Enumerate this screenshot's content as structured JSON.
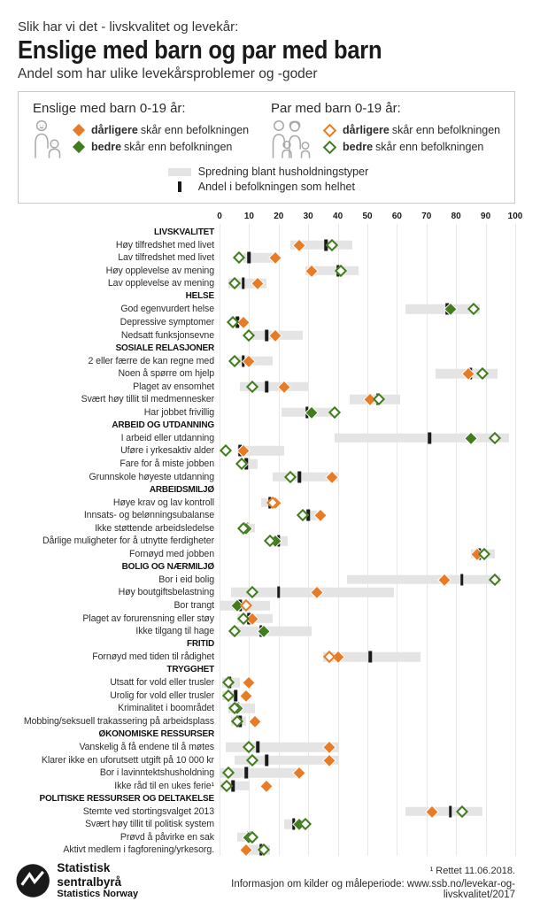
{
  "header": {
    "kicker": "Slik har vi det - livskvalitet og levekår:",
    "title": "Enslige med barn og par med barn",
    "subtitle": "Andel som har ulike levekårsproblemer og -goder"
  },
  "legend": {
    "groups": [
      {
        "title": "Enslige med barn 0-19 år:",
        "icon": "single-parent-icon",
        "items": [
          {
            "style": "filled-orange",
            "bold": "dårligere",
            "rest": "skår enn befolkningen"
          },
          {
            "style": "filled-green",
            "bold": "bedre",
            "rest": "skår enn befolkningen"
          }
        ]
      },
      {
        "title": "Par med barn 0-19 år:",
        "icon": "couple-parents-icon",
        "items": [
          {
            "style": "open-orange",
            "bold": "dårligere",
            "rest": "skår enn befolkningen"
          },
          {
            "style": "open-green",
            "bold": "bedre",
            "rest": "skår enn befolkningen"
          }
        ]
      }
    ],
    "extras": [
      {
        "symbol": "bar",
        "label": "Spredning blant husholdningstyper"
      },
      {
        "symbol": "tick",
        "label": "Andel i befolkningen som helhet"
      }
    ]
  },
  "chart_data": {
    "type": "scatter",
    "xlabel": "Andel (prosent)",
    "axis": {
      "min": 0,
      "max": 100,
      "step": 10
    },
    "legend_position": "top",
    "grid": true,
    "colors": {
      "worse": "#e87b23",
      "better": "#417c1d",
      "spread_bar": "#e4e4e4",
      "population_tick": "#1a1a1a"
    },
    "series_note": "enslige = filled diamond, par = open diamond; orange = worse than population, green = better",
    "rows": [
      {
        "section": "LIVSKVALITET"
      },
      {
        "label": "Høy tilfredshet med livet",
        "range": [
          24,
          45
        ],
        "population": 36,
        "enslige": {
          "value": 27,
          "status": "worse"
        },
        "par": {
          "value": 38,
          "status": "better"
        }
      },
      {
        "label": "Lav tilfredshet med livet",
        "range": [
          8,
          18
        ],
        "population": 10,
        "enslige": {
          "value": 19,
          "status": "worse"
        },
        "par": {
          "value": 6.5,
          "status": "better"
        }
      },
      {
        "label": "Høy opplevelse av mening",
        "range": [
          29,
          47
        ],
        "population": 40,
        "enslige": {
          "value": 31,
          "status": "worse"
        },
        "par": {
          "value": 41,
          "status": "better"
        }
      },
      {
        "label": "Lav opplevelse av mening",
        "range": [
          3,
          16
        ],
        "population": 8,
        "enslige": {
          "value": 13,
          "status": "worse"
        },
        "par": {
          "value": 5,
          "status": "better"
        }
      },
      {
        "section": "HELSE"
      },
      {
        "label": "God egenvurdert helse",
        "range": [
          63,
          88
        ],
        "population": 77,
        "enslige": {
          "value": 78,
          "status": "better"
        },
        "par": {
          "value": 86,
          "status": "better"
        }
      },
      {
        "label": "Depressive symptomer",
        "range": [
          4,
          8
        ],
        "population": 6,
        "enslige": {
          "value": 8,
          "status": "worse"
        },
        "par": {
          "value": 4.5,
          "status": "better"
        }
      },
      {
        "label": "Nedsatt funksjonsevne",
        "range": [
          10,
          28
        ],
        "population": 16,
        "enslige": {
          "value": 19,
          "status": "worse"
        },
        "par": {
          "value": 10,
          "status": "better"
        }
      },
      {
        "section": "SOSIALE RELASJONER"
      },
      {
        "label": "2 eller færre de kan regne med",
        "range": [
          5,
          18
        ],
        "population": 8,
        "enslige": {
          "value": 10,
          "status": "worse"
        },
        "par": {
          "value": 5,
          "status": "better"
        }
      },
      {
        "label": "Noen  å spørre om hjelp",
        "range": [
          73,
          94
        ],
        "population": 85,
        "enslige": {
          "value": 84,
          "status": "worse"
        },
        "par": {
          "value": 89,
          "status": "better"
        }
      },
      {
        "label": "Plaget av ensomhet",
        "range": [
          7,
          30
        ],
        "population": 16,
        "enslige": {
          "value": 22,
          "status": "worse"
        },
        "par": {
          "value": 11,
          "status": "better"
        }
      },
      {
        "label": "Svært høy tillit til medmennesker",
        "range": [
          44,
          61
        ],
        "population": 53.5,
        "enslige": {
          "value": 51,
          "status": "worse"
        },
        "par": {
          "value": 54,
          "status": "better"
        }
      },
      {
        "label": "Har jobbet frivillig",
        "range": [
          21,
          38
        ],
        "population": 29.5,
        "enslige": {
          "value": 31,
          "status": "better"
        },
        "par": {
          "value": 39,
          "status": "better"
        }
      },
      {
        "section": "ARBEID OG UTDANNING"
      },
      {
        "label": "I arbeid eller utdanning",
        "range": [
          39,
          98
        ],
        "population": 71,
        "enslige": {
          "value": 85,
          "status": "better"
        },
        "par": {
          "value": 93,
          "status": "better"
        }
      },
      {
        "label": "Uføre i yrkesaktiv alder",
        "range": [
          6,
          22
        ],
        "population": 7,
        "enslige": {
          "value": 8,
          "status": "worse"
        },
        "par": {
          "value": 2,
          "status": "better"
        }
      },
      {
        "label": "Fare for å miste jobben",
        "range": [
          8,
          13
        ],
        "population": 9,
        "enslige": {
          "value": 7.5,
          "status": "better"
        },
        "par": {
          "value": 7.5,
          "status": "better"
        }
      },
      {
        "label": "Grunnskole høyeste utdanning",
        "range": [
          18,
          40
        ],
        "population": 27,
        "enslige": {
          "value": 38,
          "status": "worse"
        },
        "par": {
          "value": 24,
          "status": "better"
        }
      },
      {
        "section": "ARBEIDSMILJØ"
      },
      {
        "label": "Høye krav og lav kontroll",
        "range": [
          14,
          20
        ],
        "population": 17,
        "enslige": {
          "value": 19,
          "status": "worse"
        },
        "par": {
          "value": 18,
          "status": "worse"
        }
      },
      {
        "label": "Innsats- og belønningsubalanse",
        "range": [
          29,
          33
        ],
        "population": 30,
        "enslige": {
          "value": 34,
          "status": "worse"
        },
        "par": {
          "value": 28,
          "status": "better"
        }
      },
      {
        "label": "Ikke støttende arbeidsledelse",
        "range": [
          7,
          12
        ],
        "population": 9,
        "enslige": {
          "value": 9,
          "status": "better"
        },
        "par": {
          "value": 8,
          "status": "better"
        }
      },
      {
        "label": "Dårlige muligheter for å utnytte ferdigheter",
        "range": [
          17,
          23
        ],
        "population": 20,
        "enslige": {
          "value": 19,
          "status": "better"
        },
        "par": {
          "value": 17,
          "status": "better"
        }
      },
      {
        "label": "Fornøyd med jobben",
        "range": [
          85,
          93
        ],
        "population": 88,
        "enslige": {
          "value": 87,
          "status": "worse"
        },
        "par": {
          "value": 89.5,
          "status": "better"
        }
      },
      {
        "section": "BOLIG OG NÆRMILJØ"
      },
      {
        "label": "Bor i eid bolig",
        "range": [
          43,
          95
        ],
        "population": 82,
        "enslige": {
          "value": 76,
          "status": "worse"
        },
        "par": {
          "value": 93,
          "status": "better"
        }
      },
      {
        "label": "Høy boutgiftsbelastning",
        "range": [
          4,
          59
        ],
        "population": 20,
        "enslige": {
          "value": 33,
          "status": "worse"
        },
        "par": {
          "value": 11,
          "status": "better"
        }
      },
      {
        "label": "Bor trangt",
        "range": [
          0,
          17
        ],
        "population": 7,
        "enslige": {
          "value": 6,
          "status": "better"
        },
        "par": {
          "value": 9,
          "status": "worse"
        }
      },
      {
        "label": "Plaget av forurensning eller støy",
        "range": [
          6,
          18
        ],
        "population": 10,
        "enslige": {
          "value": 11,
          "status": "worse"
        },
        "par": {
          "value": 8,
          "status": "better"
        }
      },
      {
        "label": "Ikke tilgang til hage",
        "range": [
          4,
          31
        ],
        "population": 14,
        "enslige": {
          "value": 15,
          "status": "better"
        },
        "par": {
          "value": 5,
          "status": "better"
        }
      },
      {
        "section": "FRITID"
      },
      {
        "label": "Fornøyd med tiden til rådighet",
        "range": [
          35,
          68
        ],
        "population": 51,
        "enslige": {
          "value": 40,
          "status": "worse"
        },
        "par": {
          "value": 37,
          "status": "worse"
        }
      },
      {
        "section": "TRYGGHET"
      },
      {
        "label": "Utsatt for vold eller trusler",
        "range": [
          1,
          7
        ],
        "population": 3.5,
        "enslige": {
          "value": 10,
          "status": "worse"
        },
        "par": {
          "value": 3,
          "status": "better"
        }
      },
      {
        "label": "Urolig for vold eller trusler",
        "range": [
          1,
          6
        ],
        "population": 5.5,
        "enslige": {
          "value": 9,
          "status": "worse"
        },
        "par": {
          "value": 3,
          "status": "better"
        }
      },
      {
        "label": "Kriminalitet i boområdet",
        "range": [
          3,
          12
        ],
        "population": 6,
        "enslige": {
          "value": 6,
          "status": "better"
        },
        "par": {
          "value": 5,
          "status": "better"
        }
      },
      {
        "label": "Mobbing/seksuell trakassering på arbeidsplass",
        "range": [
          4,
          9
        ],
        "population": 7,
        "enslige": {
          "value": 12,
          "status": "worse"
        },
        "par": {
          "value": 6,
          "status": "better"
        }
      },
      {
        "section": "ØKONOMISKE RESSURSER"
      },
      {
        "label": "Vanskelig å få endene til å møtes",
        "range": [
          2,
          40
        ],
        "population": 13,
        "enslige": {
          "value": 37,
          "status": "worse"
        },
        "par": {
          "value": 10,
          "status": "better"
        }
      },
      {
        "label": "Klarer ikke en uforutsett utgift på 10 000 kr",
        "range": [
          5,
          40
        ],
        "population": 16,
        "enslige": {
          "value": 37,
          "status": "worse"
        },
        "par": {
          "value": 11,
          "status": "better"
        }
      },
      {
        "label": "Bor i lavinntektshusholdning",
        "range": [
          0,
          27
        ],
        "population": 9,
        "enslige": {
          "value": 27,
          "status": "worse"
        },
        "par": {
          "value": 3,
          "status": "better"
        }
      },
      {
        "label": "Ikke råd til en ukes ferie¹",
        "range": [
          0,
          10
        ],
        "population": 4.5,
        "enslige": {
          "value": 16,
          "status": "worse"
        },
        "par": {
          "value": 2.5,
          "status": "better"
        }
      },
      {
        "section": "POLITISKE RESSURSER OG DELTAKELSE"
      },
      {
        "label": "Stemte ved stortingsvalget 2013",
        "range": [
          63,
          89
        ],
        "population": 78,
        "enslige": {
          "value": 72,
          "status": "worse"
        },
        "par": {
          "value": 82,
          "status": "better"
        }
      },
      {
        "label": "Svært høy tillit til politisk system",
        "range": [
          22,
          29
        ],
        "population": 25,
        "enslige": {
          "value": 27,
          "status": "better"
        },
        "par": {
          "value": 29,
          "status": "better"
        }
      },
      {
        "label": "Prøvd å påvirke en sak",
        "range": [
          6,
          12
        ],
        "population": 10,
        "enslige": {
          "value": 10,
          "status": "better"
        },
        "par": {
          "value": 11,
          "status": "better"
        }
      },
      {
        "label": "Aktivt medlem i fagforening/yrkesorg.",
        "range": [
          10,
          17
        ],
        "population": 14,
        "enslige": {
          "value": 9,
          "status": "worse"
        },
        "par": {
          "value": 15,
          "status": "better"
        }
      }
    ]
  },
  "footer": {
    "org_name": "Statistisk sentralbyrå",
    "org_name_en": "Statistics Norway",
    "note": "¹ Rettet 11.06.2018.",
    "info": "Informasjon om kilder og måleperiode: www.ssb.no/levekar-og-livskvalitet/2017"
  }
}
